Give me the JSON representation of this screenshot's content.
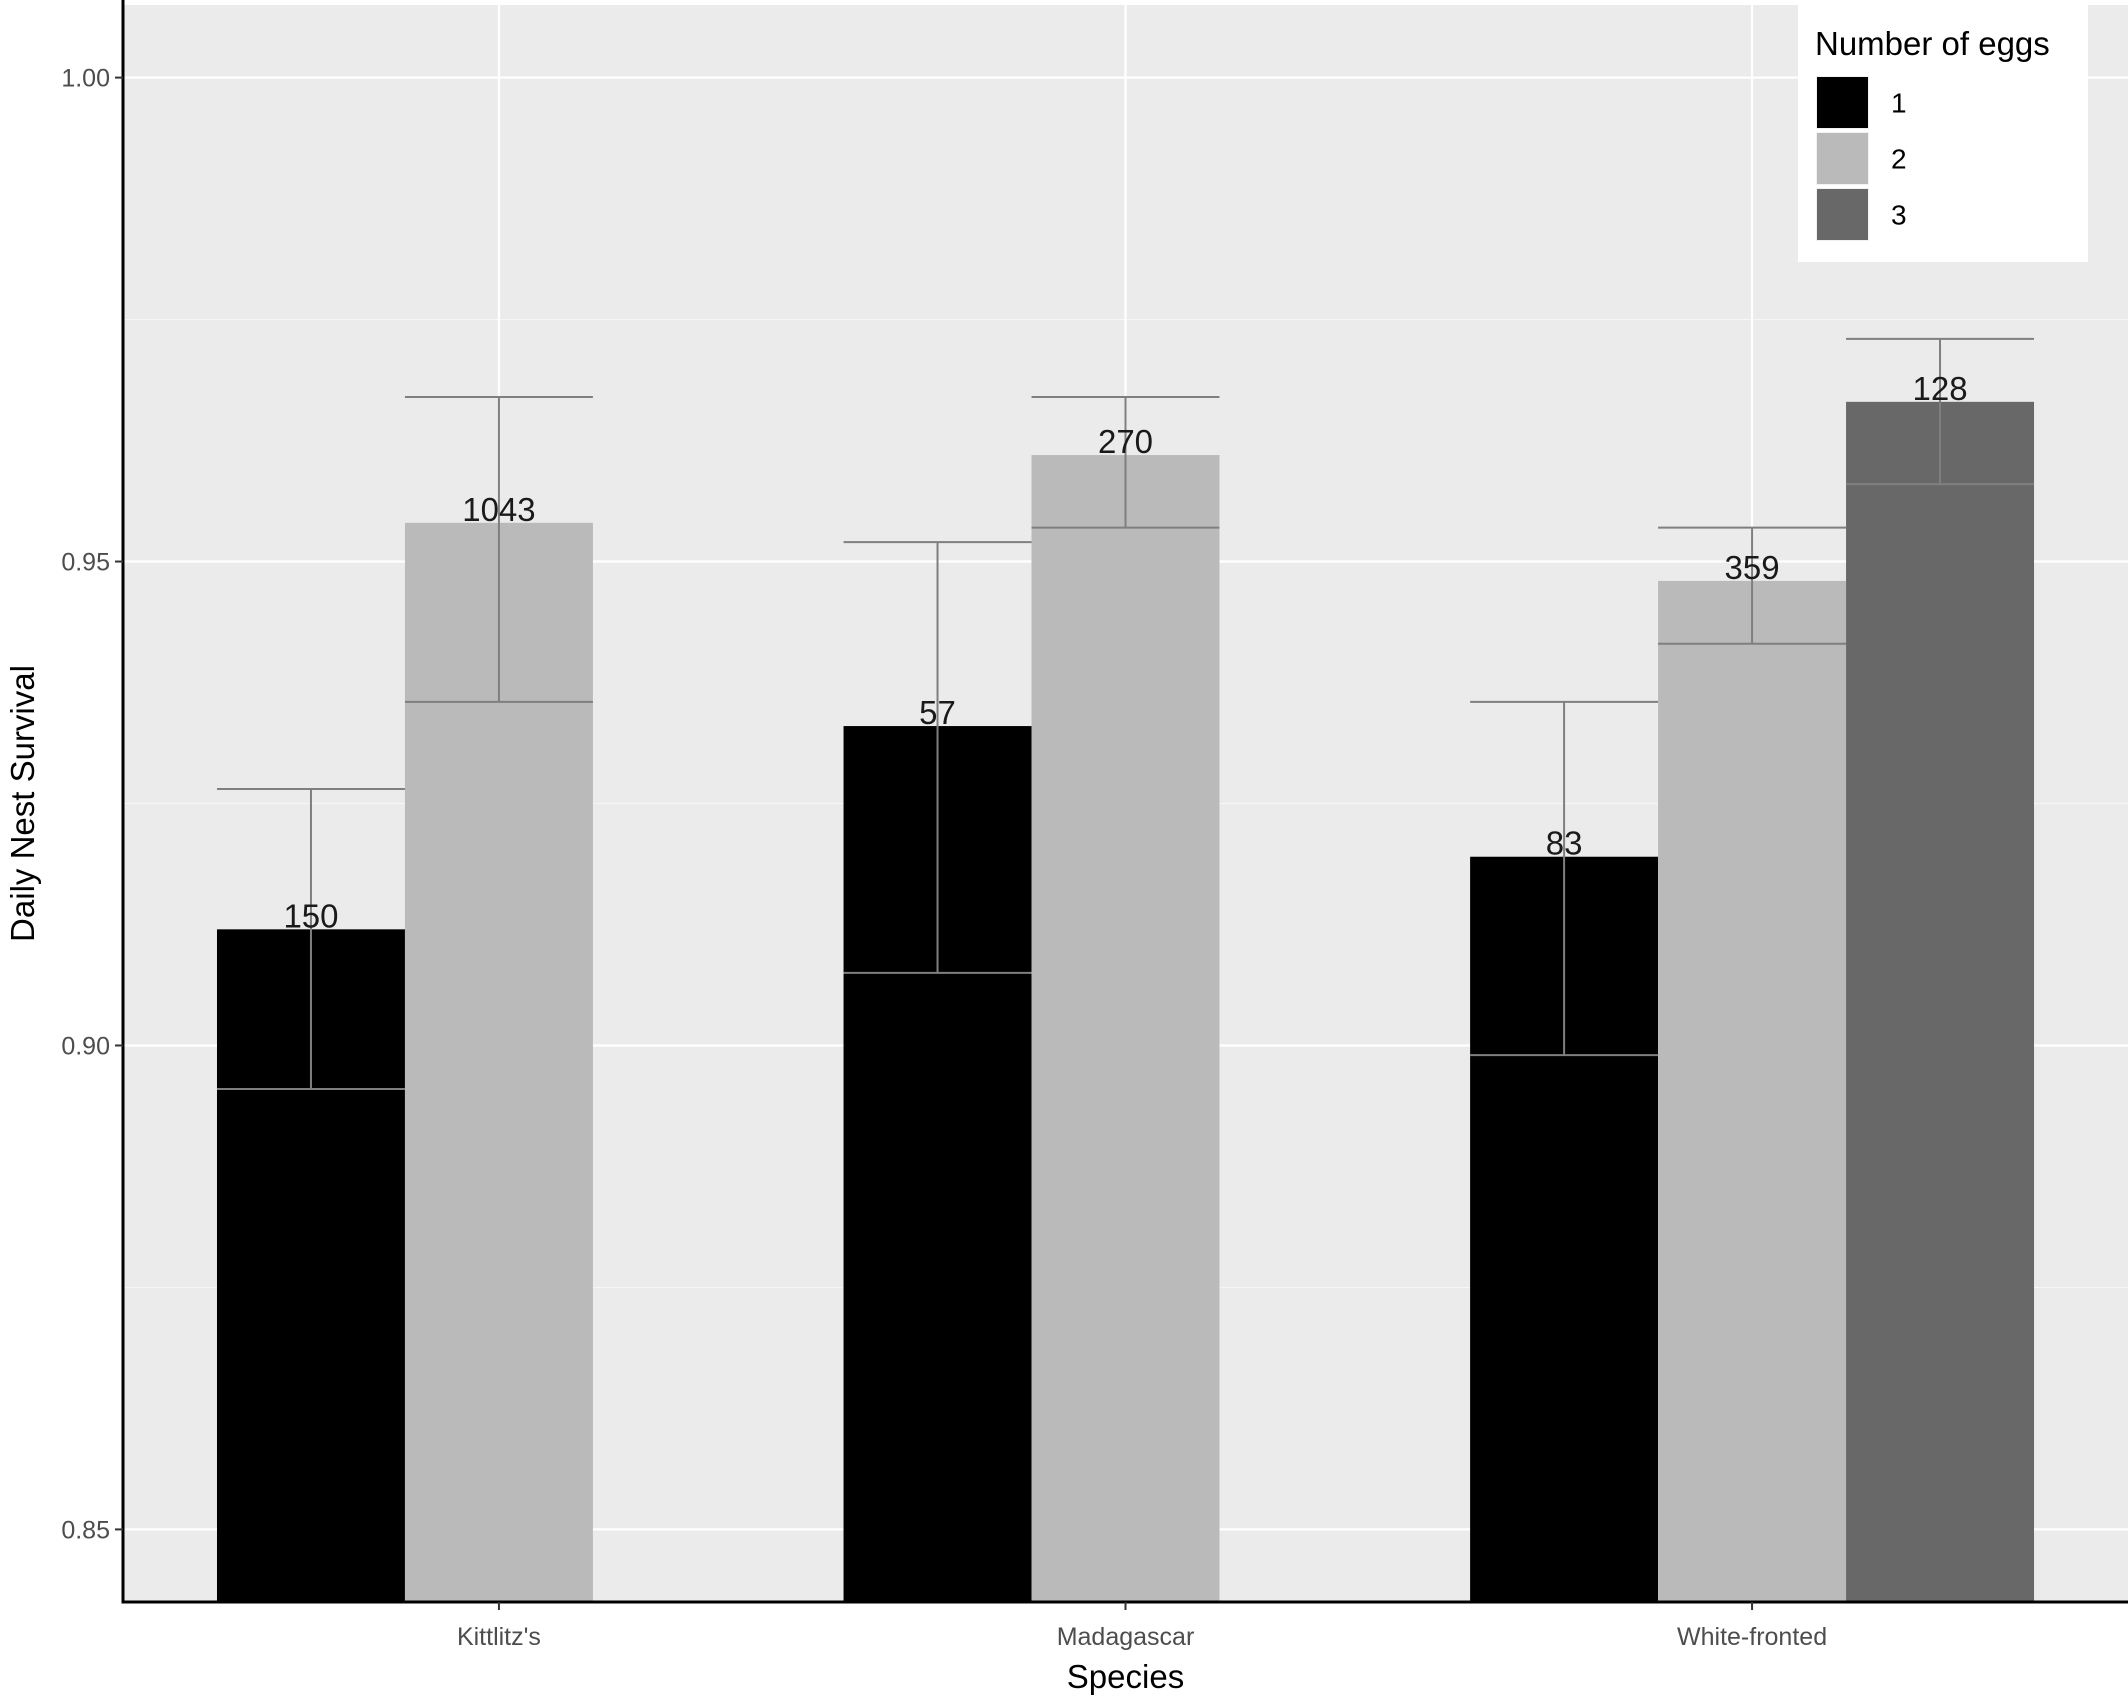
{
  "chart_data": {
    "type": "bar",
    "xlabel": "Species",
    "ylabel": "Daily Nest Survival",
    "ylim": [
      0.8425,
      1.0075
    ],
    "yticks": [
      "0.85",
      "0.90",
      "0.95",
      "1.00"
    ],
    "ytick_values": [
      0.85,
      0.9,
      0.95,
      1.0
    ],
    "grid": true,
    "legend_position": "top-right",
    "legend": {
      "title": "Number of eggs",
      "entries": [
        "1",
        "2",
        "3"
      ]
    },
    "categories": [
      "Kittlitz's",
      "Madagascar",
      "White-fronted"
    ],
    "series": [
      {
        "name": "1",
        "color": "#000000",
        "values": [
          0.912,
          0.933,
          0.9195
        ],
        "error_low": [
          0.8955,
          0.9075,
          0.899
        ],
        "error_high": [
          0.9265,
          0.952,
          0.9355
        ],
        "labels": [
          "150",
          "57",
          "83"
        ]
      },
      {
        "name": "2",
        "color": "#bababa",
        "values": [
          0.954,
          0.961,
          0.948
        ],
        "error_low": [
          0.9355,
          0.9535,
          0.9415
        ],
        "error_high": [
          0.967,
          0.967,
          0.9535
        ],
        "labels": [
          "1043",
          "270",
          "359"
        ]
      },
      {
        "name": "3",
        "color": "#686868",
        "values": [
          null,
          null,
          0.9665
        ],
        "error_low": [
          null,
          null,
          0.958
        ],
        "error_high": [
          null,
          null,
          0.973
        ],
        "labels": [
          null,
          null,
          "128"
        ]
      }
    ],
    "colors": {
      "panel_background": "#ebebeb",
      "grid_major": "#ffffff",
      "grid_minor": "#f6f6f6",
      "error_bar": "#7f7f7f",
      "axis_line": "#000000"
    }
  }
}
